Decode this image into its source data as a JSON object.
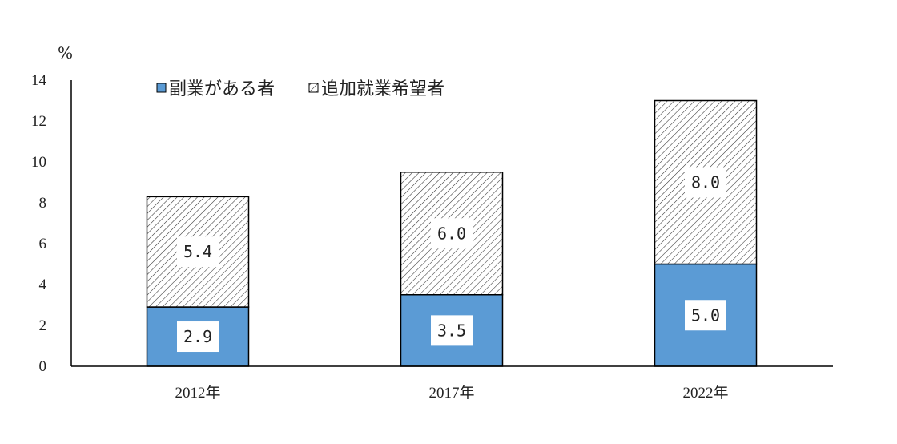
{
  "chart_data": {
    "type": "bar",
    "stacked": true,
    "unit_label": "%",
    "categories": [
      "2012年",
      "2017年",
      "2022年"
    ],
    "series": [
      {
        "name": "副業がある者",
        "values": [
          2.9,
          3.5,
          5.0
        ],
        "labels": [
          "2.9",
          "3.5",
          "5.0"
        ],
        "color": "#5b9bd5",
        "fill": "solid"
      },
      {
        "name": "追加就業希望者",
        "values": [
          5.4,
          6.0,
          8.0
        ],
        "labels": [
          "5.4",
          "6.0",
          "8.0"
        ],
        "color": "#ffffff",
        "fill": "hatched"
      }
    ],
    "ylim": [
      0,
      14
    ],
    "yticks": [
      0,
      2,
      4,
      6,
      8,
      10,
      12,
      14
    ],
    "legend": "top-left",
    "grid": false
  }
}
